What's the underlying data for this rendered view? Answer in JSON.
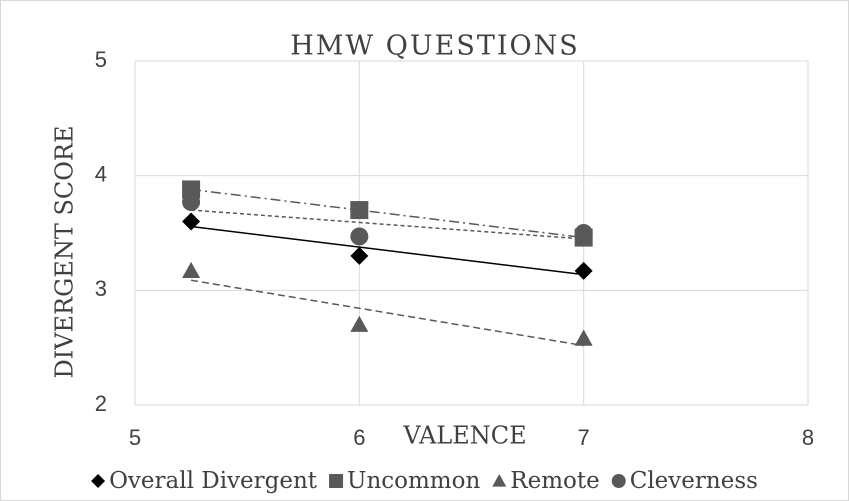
{
  "chart_data": {
    "type": "scatter",
    "title": "HMW QUESTIONS",
    "x_label": "VALENCE",
    "y_label": "DIVERGENT SCORE",
    "xlim": [
      5,
      8
    ],
    "xticks": [
      5,
      6,
      7,
      8
    ],
    "ylim": [
      2,
      5
    ],
    "yticks": [
      2,
      3,
      4,
      5
    ],
    "grid": true,
    "legend": "bottom",
    "trendline": "linear",
    "series": [
      {
        "name": "Overall Divergent",
        "color": "#000000",
        "marker": "diamond",
        "dash": "solid",
        "x": [
          5.25,
          6,
          7
        ],
        "values": [
          3.6,
          3.3,
          3.17
        ]
      },
      {
        "name": "Uncommon",
        "color": "#595959",
        "marker": "square",
        "dash": "dashdot",
        "x": [
          5.25,
          6,
          7
        ],
        "values": [
          3.88,
          3.7,
          3.46
        ]
      },
      {
        "name": "Remote",
        "color": "#595959",
        "marker": "triangle",
        "dash": "dashed",
        "x": [
          5.25,
          6,
          7
        ],
        "values": [
          3.17,
          2.7,
          2.58
        ]
      },
      {
        "name": "Cleverness",
        "color": "#595959",
        "marker": "circle",
        "dash": "dotted",
        "x": [
          5.25,
          6,
          7
        ],
        "values": [
          3.77,
          3.47,
          3.5
        ]
      }
    ]
  }
}
